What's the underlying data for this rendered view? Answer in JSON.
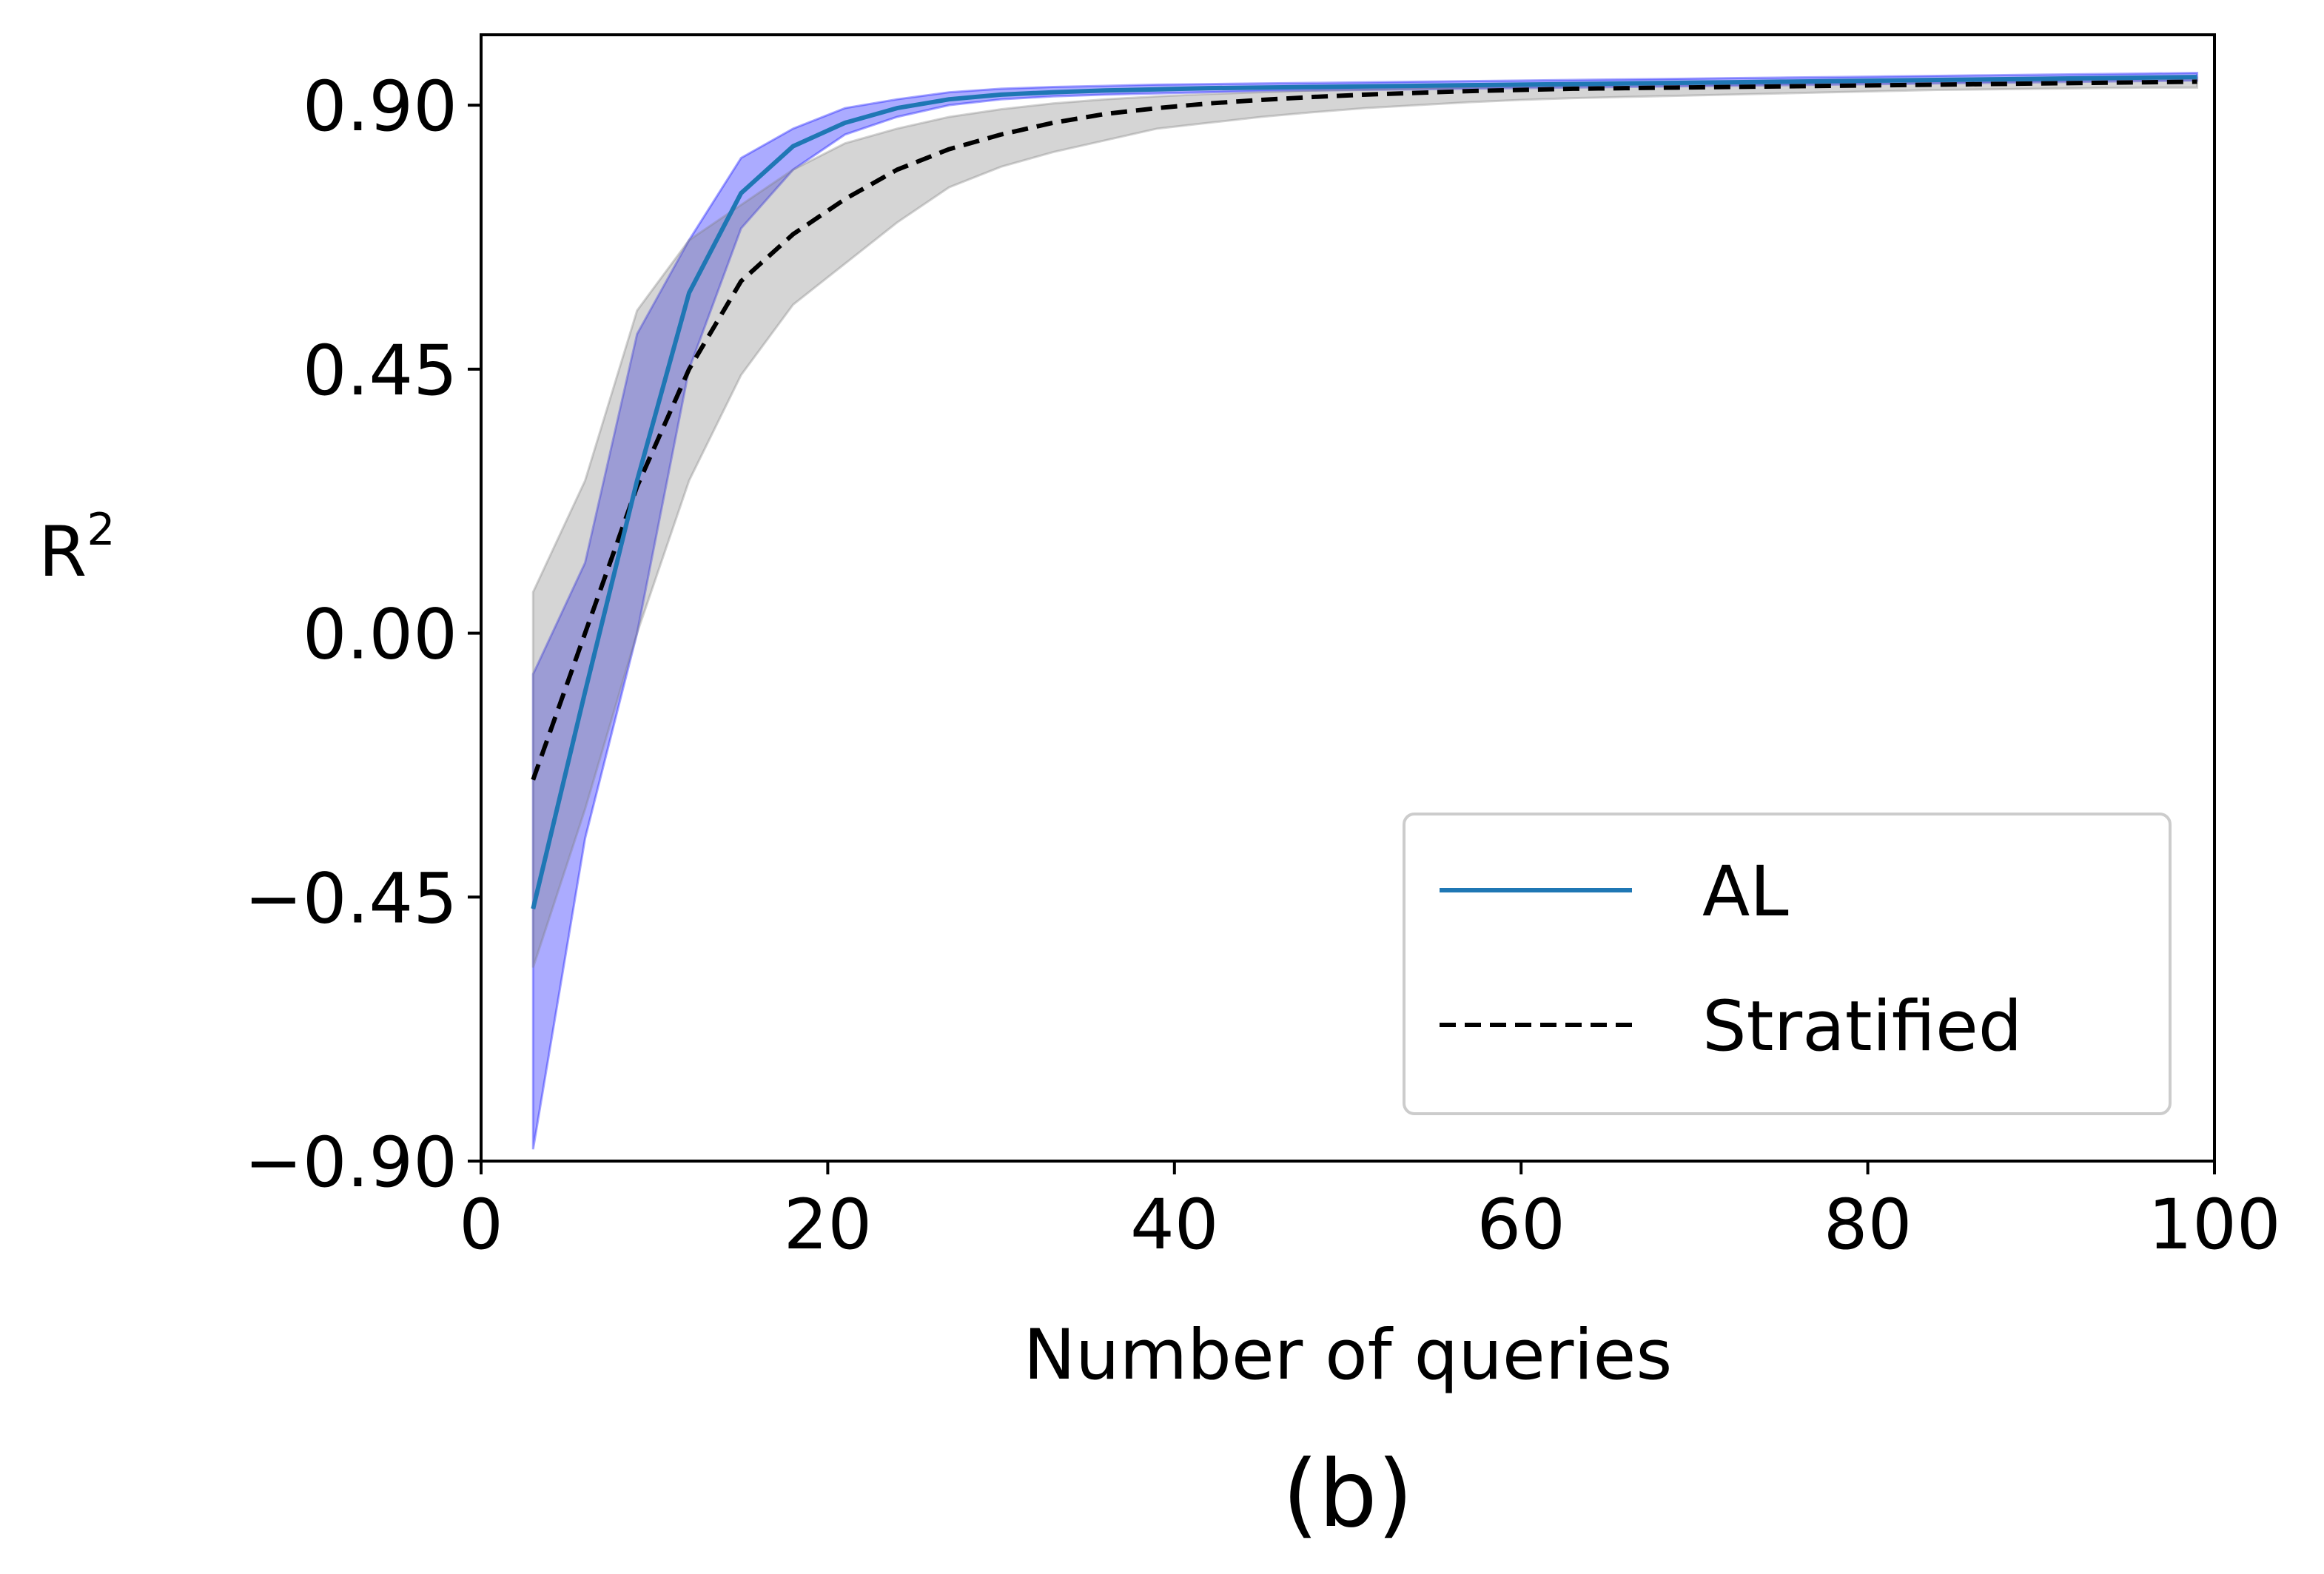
{
  "chart_data": {
    "type": "line",
    "xlabel": "Number of queries",
    "ylabel": "R",
    "ylabel_sup": "2",
    "caption": "(b)",
    "xlim": [
      0,
      100
    ],
    "ylim": [
      -0.9,
      1.02
    ],
    "x_ticks": [
      0,
      20,
      40,
      60,
      80,
      100
    ],
    "x_tick_labels": [
      "0",
      "20",
      "40",
      "60",
      "80",
      "100"
    ],
    "y_ticks": [
      -0.9,
      -0.45,
      0.0,
      0.45,
      0.9
    ],
    "y_tick_labels": [
      "−0.90",
      "−0.45",
      "0.00",
      "0.45",
      "0.90"
    ],
    "grid": false,
    "legend_position": "lower-right",
    "x": [
      3,
      6,
      9,
      12,
      15,
      18,
      21,
      24,
      27,
      30,
      33,
      36,
      39,
      42,
      45,
      48,
      51,
      54,
      57,
      60,
      63,
      66,
      69,
      72,
      75,
      78,
      81,
      84,
      87,
      90,
      93,
      96,
      99
    ],
    "series": [
      {
        "name": "AL",
        "color": "#1f77b4",
        "band_color": "#0000ff",
        "style": "solid",
        "values": [
          -0.47,
          -0.1,
          0.26,
          0.58,
          0.75,
          0.83,
          0.87,
          0.895,
          0.91,
          0.918,
          0.922,
          0.925,
          0.927,
          0.929,
          0.93,
          0.931,
          0.932,
          0.933,
          0.934,
          0.935,
          0.936,
          0.937,
          0.938,
          0.939,
          0.94,
          0.941,
          0.942,
          0.943,
          0.944,
          0.945,
          0.946,
          0.947,
          0.948
        ],
        "lower": [
          -0.88,
          -0.35,
          0.0,
          0.45,
          0.69,
          0.79,
          0.85,
          0.88,
          0.9,
          0.91,
          0.915,
          0.918,
          0.92,
          0.922,
          0.924,
          0.925,
          0.926,
          0.927,
          0.928,
          0.929,
          0.93,
          0.931,
          0.932,
          0.933,
          0.934,
          0.935,
          0.936,
          0.937,
          0.938,
          0.939,
          0.94,
          0.941,
          0.942
        ],
        "upper": [
          -0.07,
          0.12,
          0.51,
          0.67,
          0.81,
          0.86,
          0.895,
          0.91,
          0.922,
          0.928,
          0.931,
          0.933,
          0.935,
          0.936,
          0.937,
          0.938,
          0.939,
          0.94,
          0.941,
          0.942,
          0.943,
          0.944,
          0.945,
          0.946,
          0.947,
          0.948,
          0.949,
          0.95,
          0.951,
          0.952,
          0.953,
          0.954,
          0.955
        ]
      },
      {
        "name": "Stratified",
        "color": "#000000",
        "band_color": "#808080",
        "style": "dashed",
        "values": [
          -0.25,
          0.0,
          0.25,
          0.45,
          0.6,
          0.68,
          0.74,
          0.79,
          0.825,
          0.85,
          0.87,
          0.885,
          0.895,
          0.903,
          0.909,
          0.914,
          0.918,
          0.921,
          0.924,
          0.926,
          0.928,
          0.929,
          0.93,
          0.931,
          0.932,
          0.933,
          0.934,
          0.935,
          0.936,
          0.937,
          0.938,
          0.939,
          0.94
        ],
        "lower": [
          -0.57,
          -0.3,
          0.0,
          0.26,
          0.44,
          0.56,
          0.63,
          0.7,
          0.76,
          0.795,
          0.82,
          0.84,
          0.86,
          0.87,
          0.88,
          0.888,
          0.895,
          0.9,
          0.905,
          0.909,
          0.912,
          0.914,
          0.916,
          0.918,
          0.92,
          0.922,
          0.924,
          0.926,
          0.927,
          0.928,
          0.929,
          0.93,
          0.93
        ],
        "upper": [
          0.07,
          0.26,
          0.55,
          0.67,
          0.73,
          0.79,
          0.835,
          0.86,
          0.88,
          0.893,
          0.903,
          0.91,
          0.915,
          0.919,
          0.922,
          0.925,
          0.927,
          0.929,
          0.931,
          0.933,
          0.935,
          0.936,
          0.937,
          0.938,
          0.939,
          0.94,
          0.941,
          0.942,
          0.943,
          0.944,
          0.945,
          0.946,
          0.947
        ]
      }
    ]
  }
}
